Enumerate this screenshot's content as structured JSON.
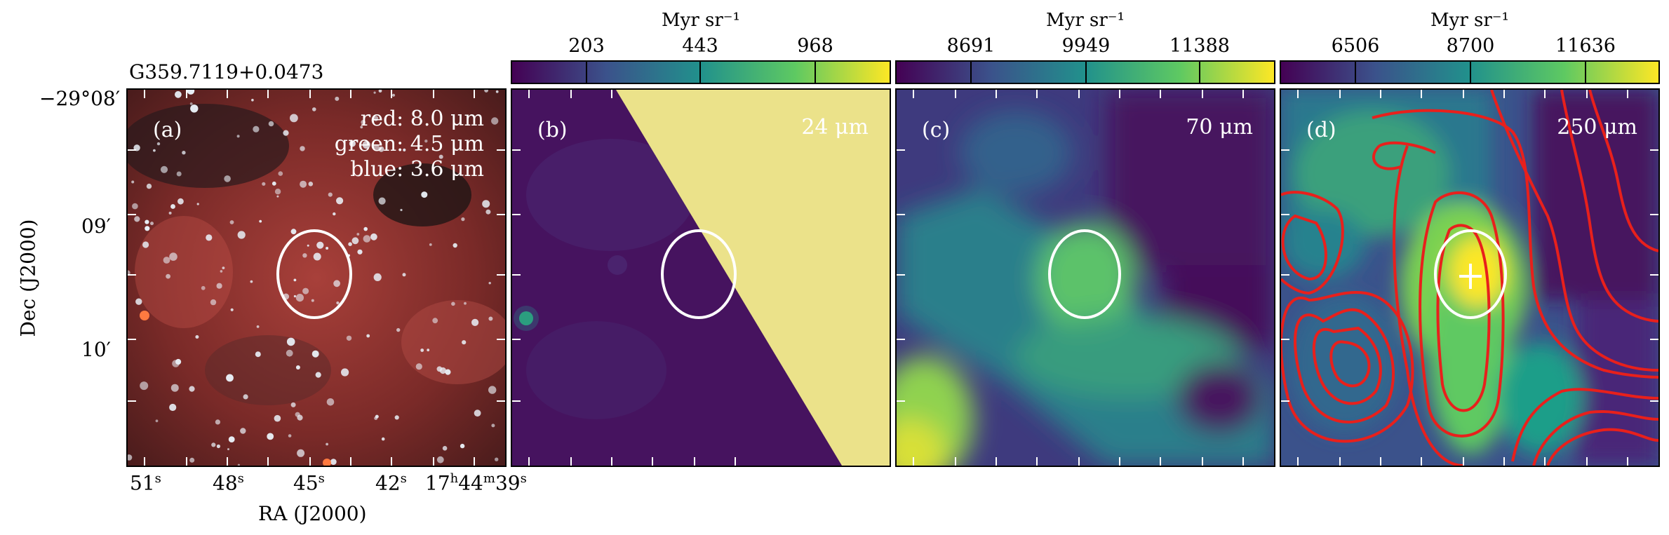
{
  "source_title": "G359.7119+0.0473",
  "yaxis_label": "Dec (J2000)",
  "xaxis_label": "RA (J2000)",
  "dec_ticks": [
    {
      "main": "−29°08′"
    },
    {
      "main": "09′"
    },
    {
      "main": "10′"
    }
  ],
  "ra_ticks": [
    {
      "v": "51",
      "u": "s"
    },
    {
      "v": "48",
      "u": "s"
    },
    {
      "v": "45",
      "u": "s"
    },
    {
      "v": "42",
      "u": "s"
    },
    {
      "v": "17",
      "u": "h",
      "v2": "44",
      "u2": "m",
      "v3": "39",
      "u3": "s"
    }
  ],
  "panels": [
    {
      "label": "(a)",
      "legend": [
        "red: 8.0 μm",
        "green: 4.5 μm",
        "blue: 3.6 μm"
      ]
    },
    {
      "label": "(b)",
      "wavelength": "24 μm",
      "colorbar": {
        "unit": "Myr sr⁻¹",
        "ticks": [
          "203",
          "443",
          "968"
        ]
      }
    },
    {
      "label": "(c)",
      "wavelength": "70 μm",
      "colorbar": {
        "unit": "Myr sr⁻¹",
        "ticks": [
          "8691",
          "9949",
          "11388"
        ]
      }
    },
    {
      "label": "(d)",
      "wavelength": "250 μm",
      "colorbar": {
        "unit": "Myr sr⁻¹",
        "ticks": [
          "6506",
          "8700",
          "11636"
        ]
      }
    }
  ],
  "colors": {
    "viridis_low": "#440154",
    "viridis_mid": "#21918c",
    "viridis_high": "#fde725",
    "saturated": "#efe58a",
    "contour": "#e8201c",
    "aperture": "#ffffff"
  }
}
